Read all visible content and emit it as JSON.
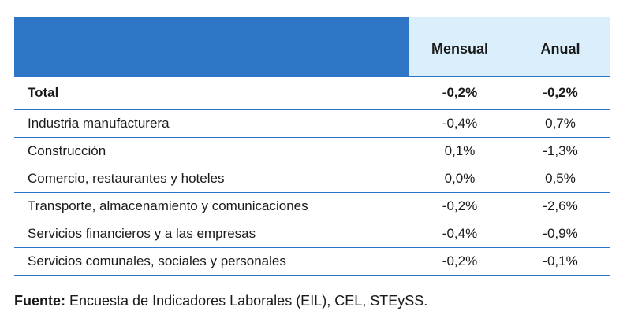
{
  "table": {
    "headers": {
      "label": "",
      "monthly": "Mensual",
      "annual": "Anual"
    },
    "total": {
      "label": "Total",
      "monthly": "-0,2%",
      "annual": "-0,2%"
    },
    "rows": [
      {
        "label": "Industria manufacturera",
        "monthly": "-0,4%",
        "annual": "0,7%"
      },
      {
        "label": "Construcción",
        "monthly": "0,1%",
        "annual": "-1,3%"
      },
      {
        "label": "Comercio, restaurantes y hoteles",
        "monthly": "0,0%",
        "annual": "0,5%"
      },
      {
        "label": "Transporte, almacenamiento y comunicaciones",
        "monthly": "-0,2%",
        "annual": "-2,6%"
      },
      {
        "label": "Servicios financieros y a las empresas",
        "monthly": "-0,4%",
        "annual": "-0,9%"
      },
      {
        "label": "Servicios comunales, sociales y personales",
        "monthly": "-0,2%",
        "annual": "-0,1%"
      }
    ]
  },
  "source": {
    "label": "Fuente:",
    "text": " Encuesta de Indicadores Laborales (EIL), CEL, STEySS."
  },
  "colors": {
    "header_blue": "#2e75c5",
    "header_light": "#dbeefb",
    "rule_blue": "#2e75c5"
  }
}
